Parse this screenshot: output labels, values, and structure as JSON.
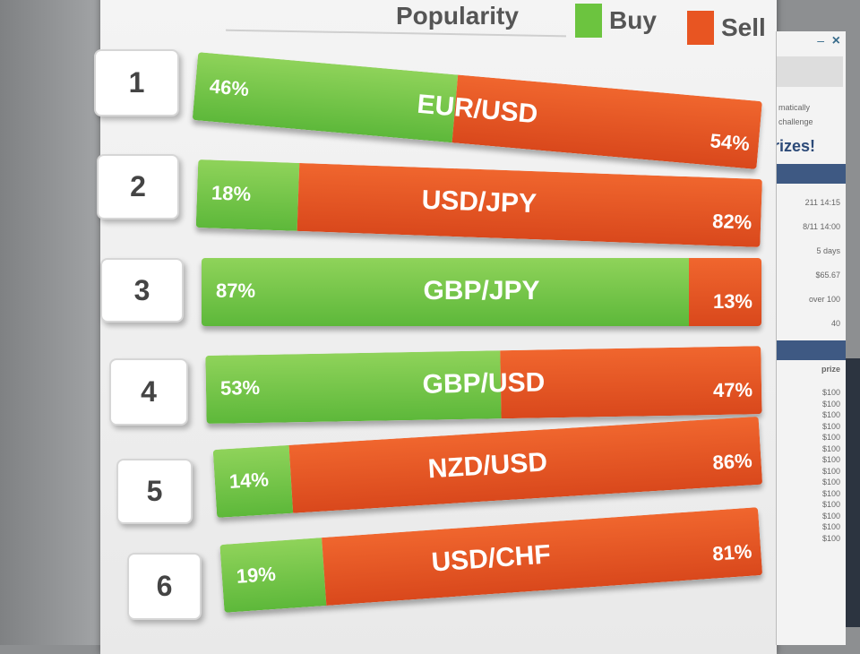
{
  "header": {
    "title": "Popularity",
    "legend": [
      {
        "label": "Buy",
        "color": "#6cc43f"
      },
      {
        "label": "Sell",
        "color": "#e85522"
      }
    ]
  },
  "rows": [
    {
      "rank": "1",
      "pair": "EUR/USD",
      "buy": 46,
      "sell": 54,
      "buy_label": "46%",
      "sell_label": "54%"
    },
    {
      "rank": "2",
      "pair": "USD/JPY",
      "buy": 18,
      "sell": 82,
      "buy_label": "18%",
      "sell_label": "82%"
    },
    {
      "rank": "3",
      "pair": "GBP/JPY",
      "buy": 87,
      "sell": 13,
      "buy_label": "87%",
      "sell_label": "13%"
    },
    {
      "rank": "4",
      "pair": "GBP/USD",
      "buy": 53,
      "sell": 47,
      "buy_label": "53%",
      "sell_label": "47%"
    },
    {
      "rank": "5",
      "pair": "NZD/USD",
      "buy": 14,
      "sell": 86,
      "buy_label": "14%",
      "sell_label": "86%"
    },
    {
      "rank": "6",
      "pair": "USD/CHF",
      "buy": 19,
      "sell": 81,
      "buy_label": "19%",
      "sell_label": "81%"
    }
  ],
  "side_panel": {
    "close": "×",
    "minimize": "–",
    "text1": "matically",
    "text2": "challenge",
    "prizes": "rizes!",
    "details": [
      "211 14:15",
      "8/11 14:00",
      "5 days",
      "$65.67",
      "over 100",
      "40"
    ],
    "prize_header": "prize",
    "prizes_list": [
      "$100",
      "$100",
      "$100",
      "$100",
      "$100",
      "$100",
      "$100",
      "$100",
      "$100",
      "$100",
      "$100",
      "$100",
      "$100",
      "$100"
    ]
  }
}
